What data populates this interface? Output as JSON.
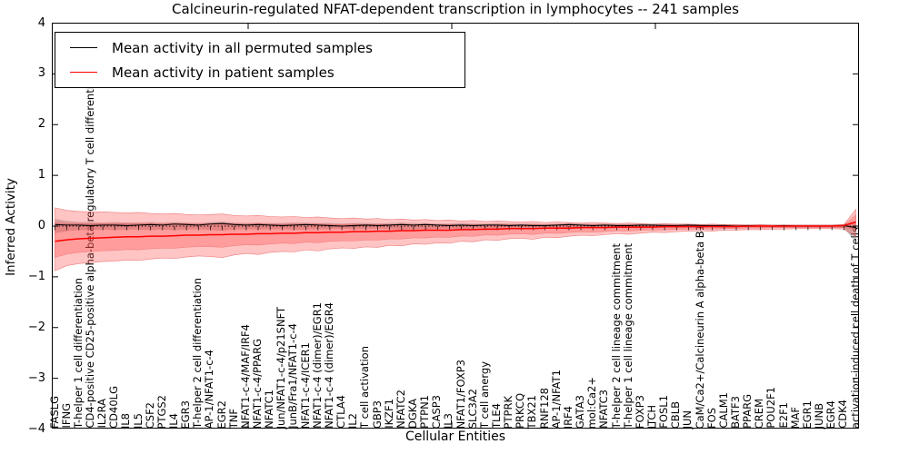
{
  "title": "Calcineurin-regulated NFAT-dependent transcription in lymphocytes -- 241 samples",
  "legend": [
    {
      "label": "Mean activity in all permuted samples",
      "color": "#000000"
    },
    {
      "label": "Mean activity in patient samples",
      "color": "#ff0000"
    }
  ],
  "axes": {
    "ylabel": "Inferred Activity",
    "xlabel": "Cellular Entities",
    "yticks": [
      "4",
      "3",
      "2",
      "1",
      "0",
      "−1",
      "−2",
      "−3",
      "−4"
    ],
    "ylim": [
      -4,
      4
    ]
  },
  "colors": {
    "black": "#000000",
    "red": "#ff0000",
    "red_band": "rgba(255,70,70,0.32)",
    "red_band_edge": "rgba(220,50,50,0.55)",
    "gray_band": "rgba(130,130,130,0.45)"
  },
  "chart_data": {
    "type": "line",
    "title": "Calcineurin-regulated NFAT-dependent transcription in lymphocytes -- 241 samples",
    "xlabel": "Cellular Entities",
    "ylabel": "Inferred Activity",
    "ylim": [
      -4,
      4
    ],
    "grid": false,
    "legend_position": "upper left",
    "zero_line": true,
    "categories": [
      "FASLG",
      "IFNG",
      "T-helper 1 cell differentiation",
      "CD4-positive CD25-positive alpha-beta regulatory T cell differentiation",
      "IL2RA",
      "CD40LG",
      "IL8",
      "IL5",
      "CSF2",
      "PTGS2",
      "IL4",
      "EGR3",
      "T-helper 2 cell differentiation",
      "AP-1/NFAT1-c-4",
      "EGR2",
      "TNF",
      "NFAT1-c-4/MAF/IRF4",
      "NFAT1-c-4/PPARG",
      "NFATC1",
      "Jun/NFAT1-c-4/p21SNFT",
      "JunB/Fra1/NFAT1-c-4",
      "NFAT1-c-4/ICER1",
      "NFAT1-c-4 (dimer)/EGR1",
      "NFAT1-c-4 (dimer)/EGR4",
      "CTLA4",
      "IL2",
      "T cell activation",
      "GBP3",
      "IKZF1",
      "NFATC2",
      "DGKA",
      "PTPN1",
      "CASP3",
      "IL3",
      "NFAT1/FOXP3",
      "SLC3A2",
      "T cell anergy",
      "TLE4",
      "PTPRK",
      "PRKCQ",
      "TBX21",
      "RNF128",
      "AP-1/NFAT1",
      "IRF4",
      "GATA3",
      "mol:Ca2+",
      "NFATC3",
      "T-helper 2 cell lineage commitment",
      "T-helper 1 cell lineage commitment",
      "FOXP3",
      "ITCH",
      "FOSL1",
      "CBLB",
      "JUN",
      "CaM/Ca2+/Calcineurin A alpha-beta B1",
      "FOS",
      "CALM1",
      "BATF3",
      "PPARG",
      "CREM",
      "POU2F1",
      "E2F1",
      "MAF",
      "EGR1",
      "JUNB",
      "EGR4",
      "CDK4",
      "activation-induced cell death of T cells"
    ],
    "series": [
      {
        "name": "Mean activity in all permuted samples",
        "color": "#000000",
        "values": [
          0.03,
          0.02,
          0.02,
          0.01,
          0.02,
          0.02,
          0.01,
          0.02,
          0.03,
          0.02,
          0.04,
          0.03,
          0.02,
          0.04,
          0.05,
          0.03,
          0.02,
          0.03,
          0.02,
          0.01,
          0.02,
          0.03,
          0.02,
          0.01,
          0.0,
          0.01,
          0.02,
          0.01,
          0.02,
          0.03,
          0.02,
          0.03,
          0.02,
          0.01,
          0.02,
          0.01,
          0.02,
          0.02,
          0.01,
          0.02,
          0.01,
          0.01,
          0.02,
          0.03,
          0.02,
          0.01,
          0.02,
          0.01,
          0.01,
          0.02,
          0.02,
          0.01,
          0.01,
          0.02,
          0.01,
          0.01,
          0.01,
          0.0,
          0.01,
          0.0,
          0.0,
          0.01,
          0.0,
          0.0,
          0.0,
          0.0,
          0.01,
          -0.03
        ]
      },
      {
        "name": "Mean activity in patient samples",
        "color": "#ff0000",
        "values": [
          -0.3,
          -0.27,
          -0.25,
          -0.24,
          -0.23,
          -0.22,
          -0.21,
          -0.21,
          -0.2,
          -0.2,
          -0.19,
          -0.18,
          -0.18,
          -0.17,
          -0.17,
          -0.16,
          -0.16,
          -0.15,
          -0.15,
          -0.14,
          -0.14,
          -0.13,
          -0.13,
          -0.12,
          -0.12,
          -0.11,
          -0.11,
          -0.1,
          -0.1,
          -0.09,
          -0.09,
          -0.08,
          -0.08,
          -0.08,
          -0.07,
          -0.07,
          -0.06,
          -0.06,
          -0.05,
          -0.05,
          -0.05,
          -0.04,
          -0.04,
          -0.04,
          -0.03,
          -0.03,
          -0.03,
          -0.02,
          -0.02,
          -0.02,
          -0.02,
          -0.01,
          -0.01,
          -0.01,
          -0.01,
          -0.01,
          -0.01,
          -0.01,
          0.0,
          0.0,
          0.0,
          0.0,
          0.0,
          0.0,
          0.0,
          0.0,
          0.01,
          0.08
        ]
      }
    ],
    "bands": [
      {
        "name": "patient samples spread",
        "series": "Mean activity in patient samples",
        "upper": [
          0.36,
          0.31,
          0.29,
          0.28,
          0.28,
          0.27,
          0.26,
          0.27,
          0.25,
          0.24,
          0.25,
          0.23,
          0.22,
          0.23,
          0.24,
          0.21,
          0.2,
          0.21,
          0.19,
          0.18,
          0.19,
          0.17,
          0.18,
          0.16,
          0.15,
          0.16,
          0.14,
          0.15,
          0.13,
          0.14,
          0.12,
          0.13,
          0.11,
          0.12,
          0.1,
          0.11,
          0.09,
          0.1,
          0.09,
          0.08,
          0.09,
          0.07,
          0.08,
          0.07,
          0.06,
          0.07,
          0.06,
          0.05,
          0.06,
          0.05,
          0.04,
          0.05,
          0.04,
          0.04,
          0.03,
          0.04,
          0.03,
          0.03,
          0.02,
          0.03,
          0.02,
          0.02,
          0.02,
          0.02,
          0.02,
          0.02,
          0.03,
          0.33
        ],
        "lower": [
          -0.88,
          -0.78,
          -0.74,
          -0.72,
          -0.7,
          -0.69,
          -0.67,
          -0.68,
          -0.65,
          -0.63,
          -0.64,
          -0.61,
          -0.59,
          -0.6,
          -0.62,
          -0.57,
          -0.54,
          -0.56,
          -0.52,
          -0.5,
          -0.51,
          -0.47,
          -0.49,
          -0.45,
          -0.43,
          -0.44,
          -0.41,
          -0.42,
          -0.38,
          -0.39,
          -0.35,
          -0.36,
          -0.33,
          -0.34,
          -0.3,
          -0.31,
          -0.27,
          -0.28,
          -0.25,
          -0.24,
          -0.26,
          -0.22,
          -0.23,
          -0.2,
          -0.18,
          -0.19,
          -0.17,
          -0.15,
          -0.16,
          -0.14,
          -0.12,
          -0.13,
          -0.11,
          -0.1,
          -0.09,
          -0.1,
          -0.08,
          -0.08,
          -0.07,
          -0.07,
          -0.06,
          -0.06,
          -0.05,
          -0.05,
          -0.05,
          -0.05,
          -0.06,
          -0.2
        ]
      },
      {
        "name": "permuted samples spread",
        "series": "Mean activity in all permuted samples",
        "upper": [
          0.14,
          0.1,
          0.08,
          0.08,
          0.07,
          0.08,
          0.07,
          0.07,
          0.08,
          0.07,
          0.08,
          0.07,
          0.06,
          0.08,
          0.09,
          0.07,
          0.06,
          0.07,
          0.06,
          0.06,
          0.07,
          0.07,
          0.06,
          0.06,
          0.05,
          0.06,
          0.06,
          0.05,
          0.06,
          0.07,
          0.06,
          0.06,
          0.05,
          0.05,
          0.06,
          0.05,
          0.05,
          0.06,
          0.05,
          0.05,
          0.05,
          0.04,
          0.05,
          0.06,
          0.05,
          0.04,
          0.05,
          0.04,
          0.04,
          0.05,
          0.04,
          0.04,
          0.04,
          0.04,
          0.04,
          0.03,
          0.04,
          0.03,
          0.03,
          0.03,
          0.03,
          0.03,
          0.03,
          0.03,
          0.03,
          0.03,
          0.04,
          0.1
        ],
        "lower": [
          -0.14,
          -0.1,
          -0.08,
          -0.08,
          -0.07,
          -0.08,
          -0.07,
          -0.07,
          -0.08,
          -0.07,
          -0.08,
          -0.07,
          -0.06,
          -0.08,
          -0.09,
          -0.07,
          -0.06,
          -0.07,
          -0.06,
          -0.06,
          -0.07,
          -0.07,
          -0.06,
          -0.06,
          -0.05,
          -0.06,
          -0.06,
          -0.05,
          -0.06,
          -0.07,
          -0.06,
          -0.06,
          -0.05,
          -0.05,
          -0.06,
          -0.05,
          -0.05,
          -0.06,
          -0.05,
          -0.05,
          -0.05,
          -0.04,
          -0.05,
          -0.06,
          -0.05,
          -0.04,
          -0.05,
          -0.04,
          -0.04,
          -0.05,
          -0.04,
          -0.04,
          -0.04,
          -0.04,
          -0.04,
          -0.03,
          -0.04,
          -0.03,
          -0.03,
          -0.03,
          -0.03,
          -0.03,
          -0.03,
          -0.03,
          -0.03,
          -0.03,
          -0.04,
          -0.32
        ]
      }
    ]
  }
}
